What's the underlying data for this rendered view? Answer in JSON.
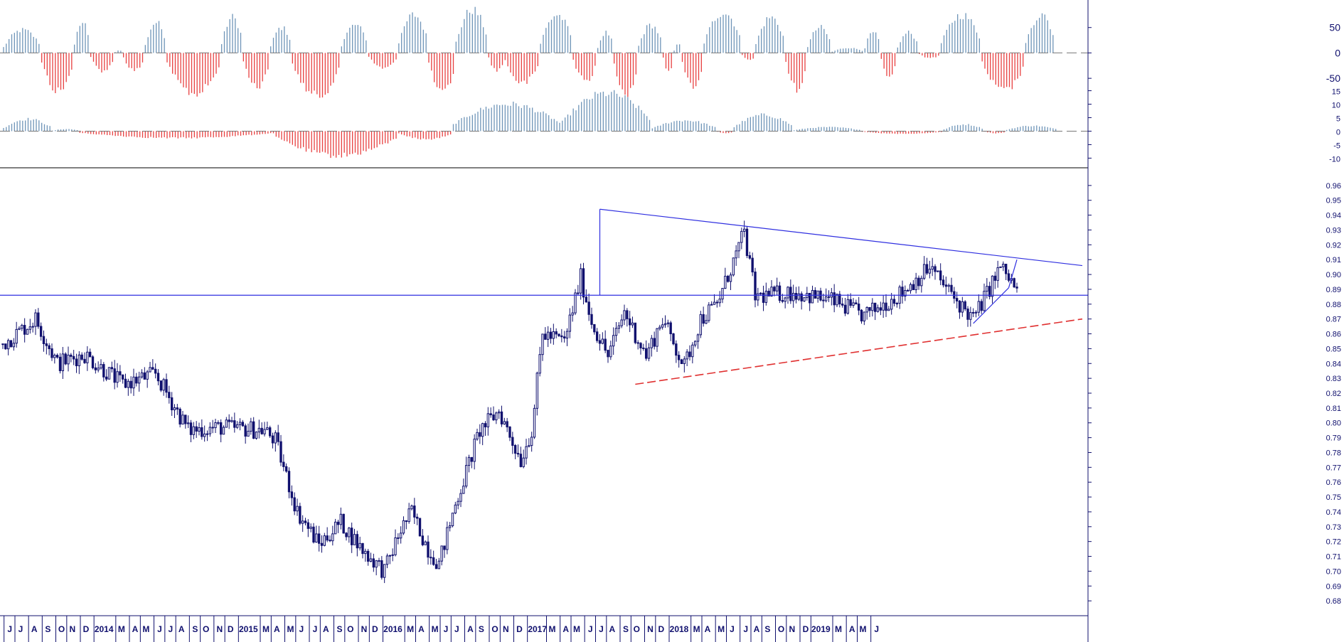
{
  "chart_data": [
    {
      "type": "bar",
      "panel": "upper-oscillator",
      "title": "",
      "ylim": [
        -75,
        100
      ],
      "yticks": [
        50,
        0,
        -50
      ],
      "zero_line": "dashed",
      "colors": {
        "positive": "#6e94b8",
        "negative": "#e84040"
      },
      "bars_per_week": 1,
      "waves": [
        {
          "t0": 0,
          "t1": 14,
          "amp": 45
        },
        {
          "t0": 14,
          "t1": 26,
          "amp": -75
        },
        {
          "t0": 26,
          "t1": 32,
          "amp": 60
        },
        {
          "t0": 32,
          "t1": 41,
          "amp": -35
        },
        {
          "t0": 41,
          "t1": 44,
          "amp": 5
        },
        {
          "t0": 44,
          "t1": 52,
          "amp": -35
        },
        {
          "t0": 52,
          "t1": 60,
          "amp": 60
        },
        {
          "t0": 60,
          "t1": 80,
          "amp": -80
        },
        {
          "t0": 80,
          "t1": 88,
          "amp": 70
        },
        {
          "t0": 88,
          "t1": 98,
          "amp": -65
        },
        {
          "t0": 98,
          "t1": 106,
          "amp": 50
        },
        {
          "t0": 106,
          "t1": 124,
          "amp": -85
        },
        {
          "t0": 124,
          "t1": 134,
          "amp": 55
        },
        {
          "t0": 134,
          "t1": 145,
          "amp": -30
        },
        {
          "t0": 145,
          "t1": 156,
          "amp": 75
        },
        {
          "t0": 156,
          "t1": 166,
          "amp": -80
        },
        {
          "t0": 166,
          "t1": 178,
          "amp": 85
        },
        {
          "t0": 178,
          "t1": 184,
          "amp": -35
        },
        {
          "t0": 184,
          "t1": 197,
          "amp": -60
        },
        {
          "t0": 197,
          "t1": 209,
          "amp": 75
        },
        {
          "t0": 209,
          "t1": 218,
          "amp": -55
        },
        {
          "t0": 218,
          "t1": 224,
          "amp": 40
        },
        {
          "t0": 224,
          "t1": 233,
          "amp": -80
        },
        {
          "t0": 233,
          "t1": 242,
          "amp": 55
        },
        {
          "t0": 242,
          "t1": 246,
          "amp": -35
        },
        {
          "t0": 246,
          "t1": 249,
          "amp": 20
        },
        {
          "t0": 249,
          "t1": 257,
          "amp": -65
        },
        {
          "t0": 257,
          "t1": 271,
          "amp": 80
        },
        {
          "t0": 271,
          "t1": 276,
          "amp": -15
        },
        {
          "t0": 276,
          "t1": 287,
          "amp": 70
        },
        {
          "t0": 287,
          "t1": 295,
          "amp": -70
        },
        {
          "t0": 295,
          "t1": 304,
          "amp": 50
        },
        {
          "t0": 304,
          "t1": 316,
          "amp": 10
        },
        {
          "t0": 316,
          "t1": 322,
          "amp": 40
        },
        {
          "t0": 322,
          "t1": 328,
          "amp": -45
        },
        {
          "t0": 328,
          "t1": 336,
          "amp": 40
        },
        {
          "t0": 336,
          "t1": 344,
          "amp": -10
        },
        {
          "t0": 344,
          "t1": 359,
          "amp": 75
        },
        {
          "t0": 359,
          "t1": 375,
          "amp": -75
        },
        {
          "t0": 375,
          "t1": 386,
          "amp": 75
        },
        {
          "t0": 386,
          "t1": 387,
          "amp": 0
        }
      ]
    },
    {
      "type": "bar",
      "panel": "lower-oscillator",
      "title": "",
      "ylim": [
        -12,
        17
      ],
      "yticks": [
        15,
        10,
        5,
        0,
        -5,
        -10
      ],
      "zero_line": "dashed",
      "colors": {
        "positive": "#6e94b8",
        "negative": "#e84040"
      },
      "bars_per_week": 1,
      "waves": [
        {
          "t0": 0,
          "t1": 18,
          "amp": 4.5
        },
        {
          "t0": 18,
          "t1": 28,
          "amp": 0.8
        },
        {
          "t0": 28,
          "t1": 100,
          "amp": -2.5
        },
        {
          "t0": 100,
          "t1": 145,
          "amp": -9
        },
        {
          "t0": 145,
          "t1": 165,
          "amp": -3
        },
        {
          "t0": 165,
          "t1": 205,
          "amp": 10
        },
        {
          "t0": 205,
          "t1": 238,
          "amp": 14
        },
        {
          "t0": 238,
          "t1": 262,
          "amp": 4
        },
        {
          "t0": 262,
          "t1": 268,
          "amp": -0.8
        },
        {
          "t0": 268,
          "t1": 290,
          "amp": 6
        },
        {
          "t0": 290,
          "t1": 315,
          "amp": 1.5
        },
        {
          "t0": 315,
          "t1": 345,
          "amp": -1
        },
        {
          "t0": 345,
          "t1": 360,
          "amp": 2.5
        },
        {
          "t0": 360,
          "t1": 368,
          "amp": -0.8
        },
        {
          "t0": 368,
          "t1": 387,
          "amp": 2
        }
      ]
    },
    {
      "type": "candlestick",
      "panel": "price",
      "title": "",
      "ylim": [
        0.67,
        0.97
      ],
      "y_ticks": [
        0.96,
        0.95,
        0.94,
        0.93,
        0.92,
        0.91,
        0.9,
        0.89,
        0.88,
        0.87,
        0.86,
        0.85,
        0.84,
        0.83,
        0.82,
        0.81,
        0.8,
        0.79,
        0.78,
        0.77,
        0.76,
        0.75,
        0.74,
        0.73,
        0.72,
        0.71,
        0.7,
        0.69,
        0.68
      ],
      "frequency": "weekly",
      "candle_colors": {
        "up": "#ffffff",
        "down": "#10106e",
        "outline": "#10106e"
      },
      "close_path": [
        {
          "t": 0,
          "v": 0.853
        },
        {
          "t": 12,
          "v": 0.87
        },
        {
          "t": 20,
          "v": 0.84
        },
        {
          "t": 30,
          "v": 0.846
        },
        {
          "t": 44,
          "v": 0.826
        },
        {
          "t": 56,
          "v": 0.833
        },
        {
          "t": 68,
          "v": 0.795
        },
        {
          "t": 80,
          "v": 0.797
        },
        {
          "t": 96,
          "v": 0.795
        },
        {
          "t": 100,
          "v": 0.788
        },
        {
          "t": 108,
          "v": 0.74
        },
        {
          "t": 116,
          "v": 0.718
        },
        {
          "t": 124,
          "v": 0.733
        },
        {
          "t": 132,
          "v": 0.714
        },
        {
          "t": 140,
          "v": 0.7
        },
        {
          "t": 146,
          "v": 0.728
        },
        {
          "t": 150,
          "v": 0.74
        },
        {
          "t": 156,
          "v": 0.715
        },
        {
          "t": 160,
          "v": 0.705
        },
        {
          "t": 166,
          "v": 0.745
        },
        {
          "t": 175,
          "v": 0.795
        },
        {
          "t": 182,
          "v": 0.808
        },
        {
          "t": 190,
          "v": 0.775
        },
        {
          "t": 194,
          "v": 0.795
        },
        {
          "t": 198,
          "v": 0.86
        },
        {
          "t": 206,
          "v": 0.855
        },
        {
          "t": 212,
          "v": 0.898
        },
        {
          "t": 216,
          "v": 0.868
        },
        {
          "t": 222,
          "v": 0.845
        },
        {
          "t": 228,
          "v": 0.875
        },
        {
          "t": 236,
          "v": 0.845
        },
        {
          "t": 242,
          "v": 0.87
        },
        {
          "t": 250,
          "v": 0.838
        },
        {
          "t": 256,
          "v": 0.87
        },
        {
          "t": 262,
          "v": 0.88
        },
        {
          "t": 272,
          "v": 0.928
        },
        {
          "t": 276,
          "v": 0.885
        },
        {
          "t": 290,
          "v": 0.888
        },
        {
          "t": 305,
          "v": 0.882
        },
        {
          "t": 316,
          "v": 0.872
        },
        {
          "t": 330,
          "v": 0.888
        },
        {
          "t": 340,
          "v": 0.905
        },
        {
          "t": 350,
          "v": 0.882
        },
        {
          "t": 356,
          "v": 0.87
        },
        {
          "t": 366,
          "v": 0.905
        },
        {
          "t": 370,
          "v": 0.895
        },
        {
          "t": 372,
          "v": 0.888
        }
      ],
      "horizontal_line": 0.886,
      "trendlines": [
        {
          "name": "resistance",
          "color": "#2f2fe0",
          "style": "solid",
          "from": {
            "t": 219,
            "v": 0.944
          },
          "to": {
            "t": 396,
            "v": 0.906
          }
        },
        {
          "name": "spike",
          "color": "#2f2fe0",
          "style": "solid",
          "from": {
            "t": 219,
            "v": 0.886
          },
          "to": {
            "t": 219,
            "v": 0.944
          }
        },
        {
          "name": "support",
          "color": "#e03030",
          "style": "dashed",
          "from": {
            "t": 232,
            "v": 0.826
          },
          "to": {
            "t": 396,
            "v": 0.87
          }
        },
        {
          "name": "wedge-lower",
          "color": "#2f2fe0",
          "style": "solid",
          "from": {
            "t": 356,
            "v": 0.867
          },
          "to": {
            "t": 369,
            "v": 0.891
          }
        },
        {
          "name": "wedge-upper",
          "color": "#2f2fe0",
          "style": "solid",
          "from": {
            "t": 369,
            "v": 0.891
          },
          "to": {
            "t": 372,
            "v": 0.91
          }
        }
      ],
      "x_axis": {
        "t_max": 396,
        "labels": [
          {
            "t": 2,
            "text": "J"
          },
          {
            "t": 6,
            "text": "J"
          },
          {
            "t": 11,
            "text": "A"
          },
          {
            "t": 16,
            "text": "S"
          },
          {
            "t": 21,
            "text": "O"
          },
          {
            "t": 25,
            "text": "N"
          },
          {
            "t": 30,
            "text": "D"
          },
          {
            "t": 35,
            "text": "2014"
          },
          {
            "t": 43,
            "text": "M"
          },
          {
            "t": 48,
            "text": "A"
          },
          {
            "t": 52,
            "text": "M"
          },
          {
            "t": 57,
            "text": "J"
          },
          {
            "t": 61,
            "text": "J"
          },
          {
            "t": 65,
            "text": "A"
          },
          {
            "t": 70,
            "text": "S"
          },
          {
            "t": 74,
            "text": "O"
          },
          {
            "t": 79,
            "text": "N"
          },
          {
            "t": 83,
            "text": "D"
          },
          {
            "t": 88,
            "text": "2015"
          },
          {
            "t": 96,
            "text": "M"
          },
          {
            "t": 100,
            "text": "A"
          },
          {
            "t": 105,
            "text": "M"
          },
          {
            "t": 109,
            "text": "J"
          },
          {
            "t": 114,
            "text": "J"
          },
          {
            "t": 118,
            "text": "A"
          },
          {
            "t": 123,
            "text": "S"
          },
          {
            "t": 127,
            "text": "O"
          },
          {
            "t": 132,
            "text": "N"
          },
          {
            "t": 136,
            "text": "D"
          },
          {
            "t": 141,
            "text": "2016"
          },
          {
            "t": 149,
            "text": "M"
          },
          {
            "t": 153,
            "text": "A"
          },
          {
            "t": 158,
            "text": "M"
          },
          {
            "t": 162,
            "text": "J"
          },
          {
            "t": 166,
            "text": "J"
          },
          {
            "t": 171,
            "text": "A"
          },
          {
            "t": 175,
            "text": "S"
          },
          {
            "t": 180,
            "text": "O"
          },
          {
            "t": 184,
            "text": "N"
          },
          {
            "t": 189,
            "text": "D"
          },
          {
            "t": 194,
            "text": "2017"
          },
          {
            "t": 201,
            "text": "M"
          },
          {
            "t": 206,
            "text": "A"
          },
          {
            "t": 210,
            "text": "M"
          },
          {
            "t": 215,
            "text": "J"
          },
          {
            "t": 219,
            "text": "J"
          },
          {
            "t": 223,
            "text": "A"
          },
          {
            "t": 228,
            "text": "S"
          },
          {
            "t": 232,
            "text": "O"
          },
          {
            "t": 237,
            "text": "N"
          },
          {
            "t": 241,
            "text": "D"
          },
          {
            "t": 246,
            "text": "2018"
          },
          {
            "t": 254,
            "text": "M"
          },
          {
            "t": 258,
            "text": "A"
          },
          {
            "t": 263,
            "text": "M"
          },
          {
            "t": 267,
            "text": "J"
          },
          {
            "t": 272,
            "text": "J"
          },
          {
            "t": 276,
            "text": "A"
          },
          {
            "t": 280,
            "text": "S"
          },
          {
            "t": 285,
            "text": "O"
          },
          {
            "t": 289,
            "text": "N"
          },
          {
            "t": 294,
            "text": "D"
          },
          {
            "t": 298,
            "text": "2019"
          },
          {
            "t": 306,
            "text": "M"
          },
          {
            "t": 311,
            "text": "A"
          },
          {
            "t": 315,
            "text": "M"
          },
          {
            "t": 320,
            "text": "J"
          }
        ]
      }
    }
  ]
}
